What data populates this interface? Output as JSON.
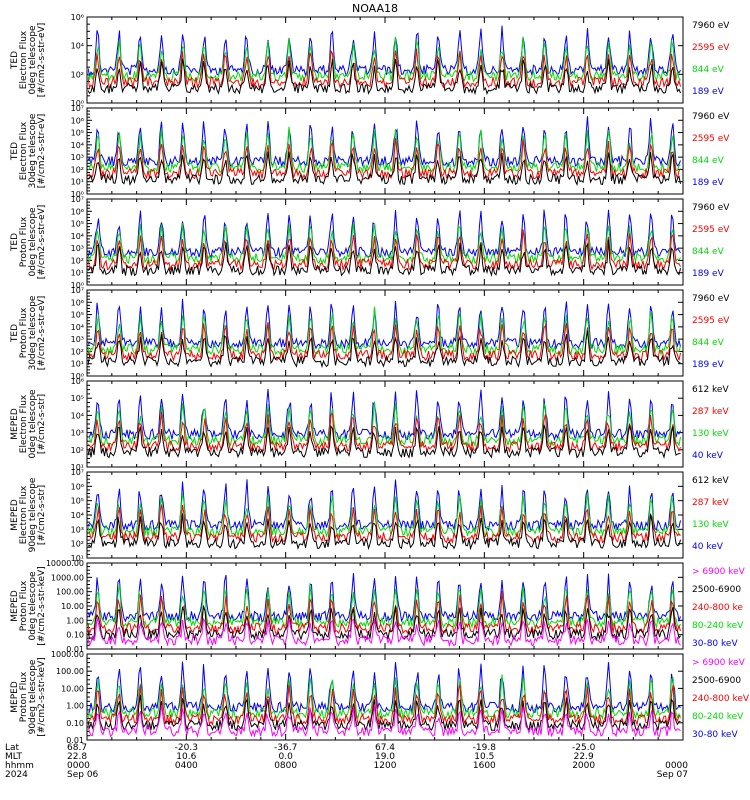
{
  "title": "NOAA18",
  "colors": {
    "blue": "#0000ff",
    "red": "#ff0000",
    "green": "#00dd00",
    "black": "#000000",
    "magenta": "#ff00ff"
  },
  "chart_data": [
    {
      "type": "line",
      "ylabel": [
        "TED",
        "Electron Flux",
        "0deg telescope",
        "[#/cm2-s-str-eV]"
      ],
      "yscale": "log",
      "yticks": [
        "10⁰",
        "10²",
        "10⁴",
        "10⁶"
      ],
      "legend": [
        {
          "name": "7960 eV",
          "color": "black"
        },
        {
          "name": "2595 eV",
          "color": "red"
        },
        {
          "name": "844 eV",
          "color": "green"
        },
        {
          "name": "189 eV",
          "color": "blue"
        }
      ]
    },
    {
      "type": "line",
      "ylabel": [
        "TED",
        "Electron Flux",
        "30deg telescope",
        "[#/cm2-s-str-eV]"
      ],
      "yscale": "log",
      "yticks": [
        "10⁰",
        "10¹",
        "10²",
        "10³",
        "10⁴",
        "10⁵",
        "10⁶",
        "10⁷"
      ],
      "legend": [
        {
          "name": "7960 eV",
          "color": "black"
        },
        {
          "name": "2595 eV",
          "color": "red"
        },
        {
          "name": "844 eV",
          "color": "green"
        },
        {
          "name": "189 eV",
          "color": "blue"
        }
      ]
    },
    {
      "type": "line",
      "ylabel": [
        "TED",
        "Proton Flux",
        "0deg telescope",
        "[#/cm2-s-str-eV]"
      ],
      "yscale": "log",
      "yticks": [
        "10⁰",
        "10¹",
        "10²",
        "10³",
        "10⁴",
        "10⁵",
        "10⁶",
        "10⁷"
      ],
      "legend": [
        {
          "name": "7960 eV",
          "color": "black"
        },
        {
          "name": "2595 eV",
          "color": "red"
        },
        {
          "name": "844 eV",
          "color": "green"
        },
        {
          "name": "189 eV",
          "color": "blue"
        }
      ]
    },
    {
      "type": "line",
      "ylabel": [
        "TED",
        "Proton Flux",
        "30deg telescope",
        "[#/cm2-s-str-eV]"
      ],
      "yscale": "log",
      "yticks": [
        "10⁰",
        "10¹",
        "10²",
        "10³",
        "10⁴",
        "10⁵",
        "10⁶",
        "10⁷"
      ],
      "legend": [
        {
          "name": "7960 eV",
          "color": "black"
        },
        {
          "name": "2595 eV",
          "color": "red"
        },
        {
          "name": "844 eV",
          "color": "green"
        },
        {
          "name": "189 eV",
          "color": "blue"
        }
      ]
    },
    {
      "type": "line",
      "ylabel": [
        "MEPED",
        "Electron Flux",
        "0deg telescope",
        "[#/cm2-s-str]"
      ],
      "yscale": "log",
      "yticks": [
        "10¹",
        "10²",
        "10³",
        "10⁴",
        "10⁵",
        "10⁶"
      ],
      "legend": [
        {
          "name": "612 keV",
          "color": "black"
        },
        {
          "name": "287 keV",
          "color": "red"
        },
        {
          "name": "130 keV",
          "color": "green"
        },
        {
          "name": "40 keV",
          "color": "blue"
        }
      ]
    },
    {
      "type": "line",
      "ylabel": [
        "MEPED",
        "Electron Flux",
        "90deg telescope",
        "[#/cm2-s-str]"
      ],
      "yscale": "log",
      "yticks": [
        "10¹",
        "10²",
        "10³",
        "10⁴",
        "10⁵",
        "10⁶",
        "10⁷"
      ],
      "legend": [
        {
          "name": "612 keV",
          "color": "black"
        },
        {
          "name": "287 keV",
          "color": "red"
        },
        {
          "name": "130 keV",
          "color": "green"
        },
        {
          "name": "40 keV",
          "color": "blue"
        }
      ]
    },
    {
      "type": "line",
      "ylabel": [
        "MEPED",
        "Proton Flux",
        "0deg telescope",
        "[#/cm2-s-str-keV]"
      ],
      "yscale": "log",
      "yticks": [
        "0.01",
        "0.10",
        "1.00",
        "10.00",
        "100.00",
        "1000.00",
        "10000.00"
      ],
      "legend": [
        {
          "name": "> 6900 keV",
          "color": "magenta"
        },
        {
          "name": "2500-6900",
          "color": "black"
        },
        {
          "name": "240-800 ke",
          "color": "red"
        },
        {
          "name": "80-240 keV",
          "color": "green"
        },
        {
          "name": "30-80 keV",
          "color": "blue"
        }
      ]
    },
    {
      "type": "line",
      "ylabel": [
        "MEPED",
        "Proton Flux",
        "90deg telescope",
        "[#/cm2-s-str-keV]"
      ],
      "yscale": "log",
      "yticks": [
        "0.01",
        "0.10",
        "1.00",
        "10.00",
        "100.00",
        "1000.00"
      ],
      "legend": [
        {
          "name": "> 6900 keV",
          "color": "magenta"
        },
        {
          "name": "2500-6900",
          "color": "black"
        },
        {
          "name": "240-800 keV",
          "color": "red"
        },
        {
          "name": "80-240 keV",
          "color": "green"
        },
        {
          "name": "30-80 keV",
          "color": "blue"
        }
      ]
    }
  ],
  "footer": {
    "row_labels": [
      "Lat",
      "MLT",
      "hhmm",
      "2024"
    ],
    "columns": [
      {
        "lat": "68.7",
        "mlt": "22.8",
        "hhmm": "0000",
        "date": "Sep 06"
      },
      {
        "lat": "-20.3",
        "mlt": "10.6",
        "hhmm": "0400",
        "date": ""
      },
      {
        "lat": "-36.7",
        "mlt": "0.0",
        "hhmm": "0800",
        "date": ""
      },
      {
        "lat": "67.4",
        "mlt": "19.0",
        "hhmm": "1200",
        "date": ""
      },
      {
        "lat": "-19.8",
        "mlt": "10.5",
        "hhmm": "1600",
        "date": ""
      },
      {
        "lat": "-25.0",
        "mlt": "22.9",
        "hhmm": "2000",
        "date": ""
      },
      {
        "lat": "",
        "mlt": "",
        "hhmm": "0000",
        "date": "Sep 07"
      }
    ]
  }
}
